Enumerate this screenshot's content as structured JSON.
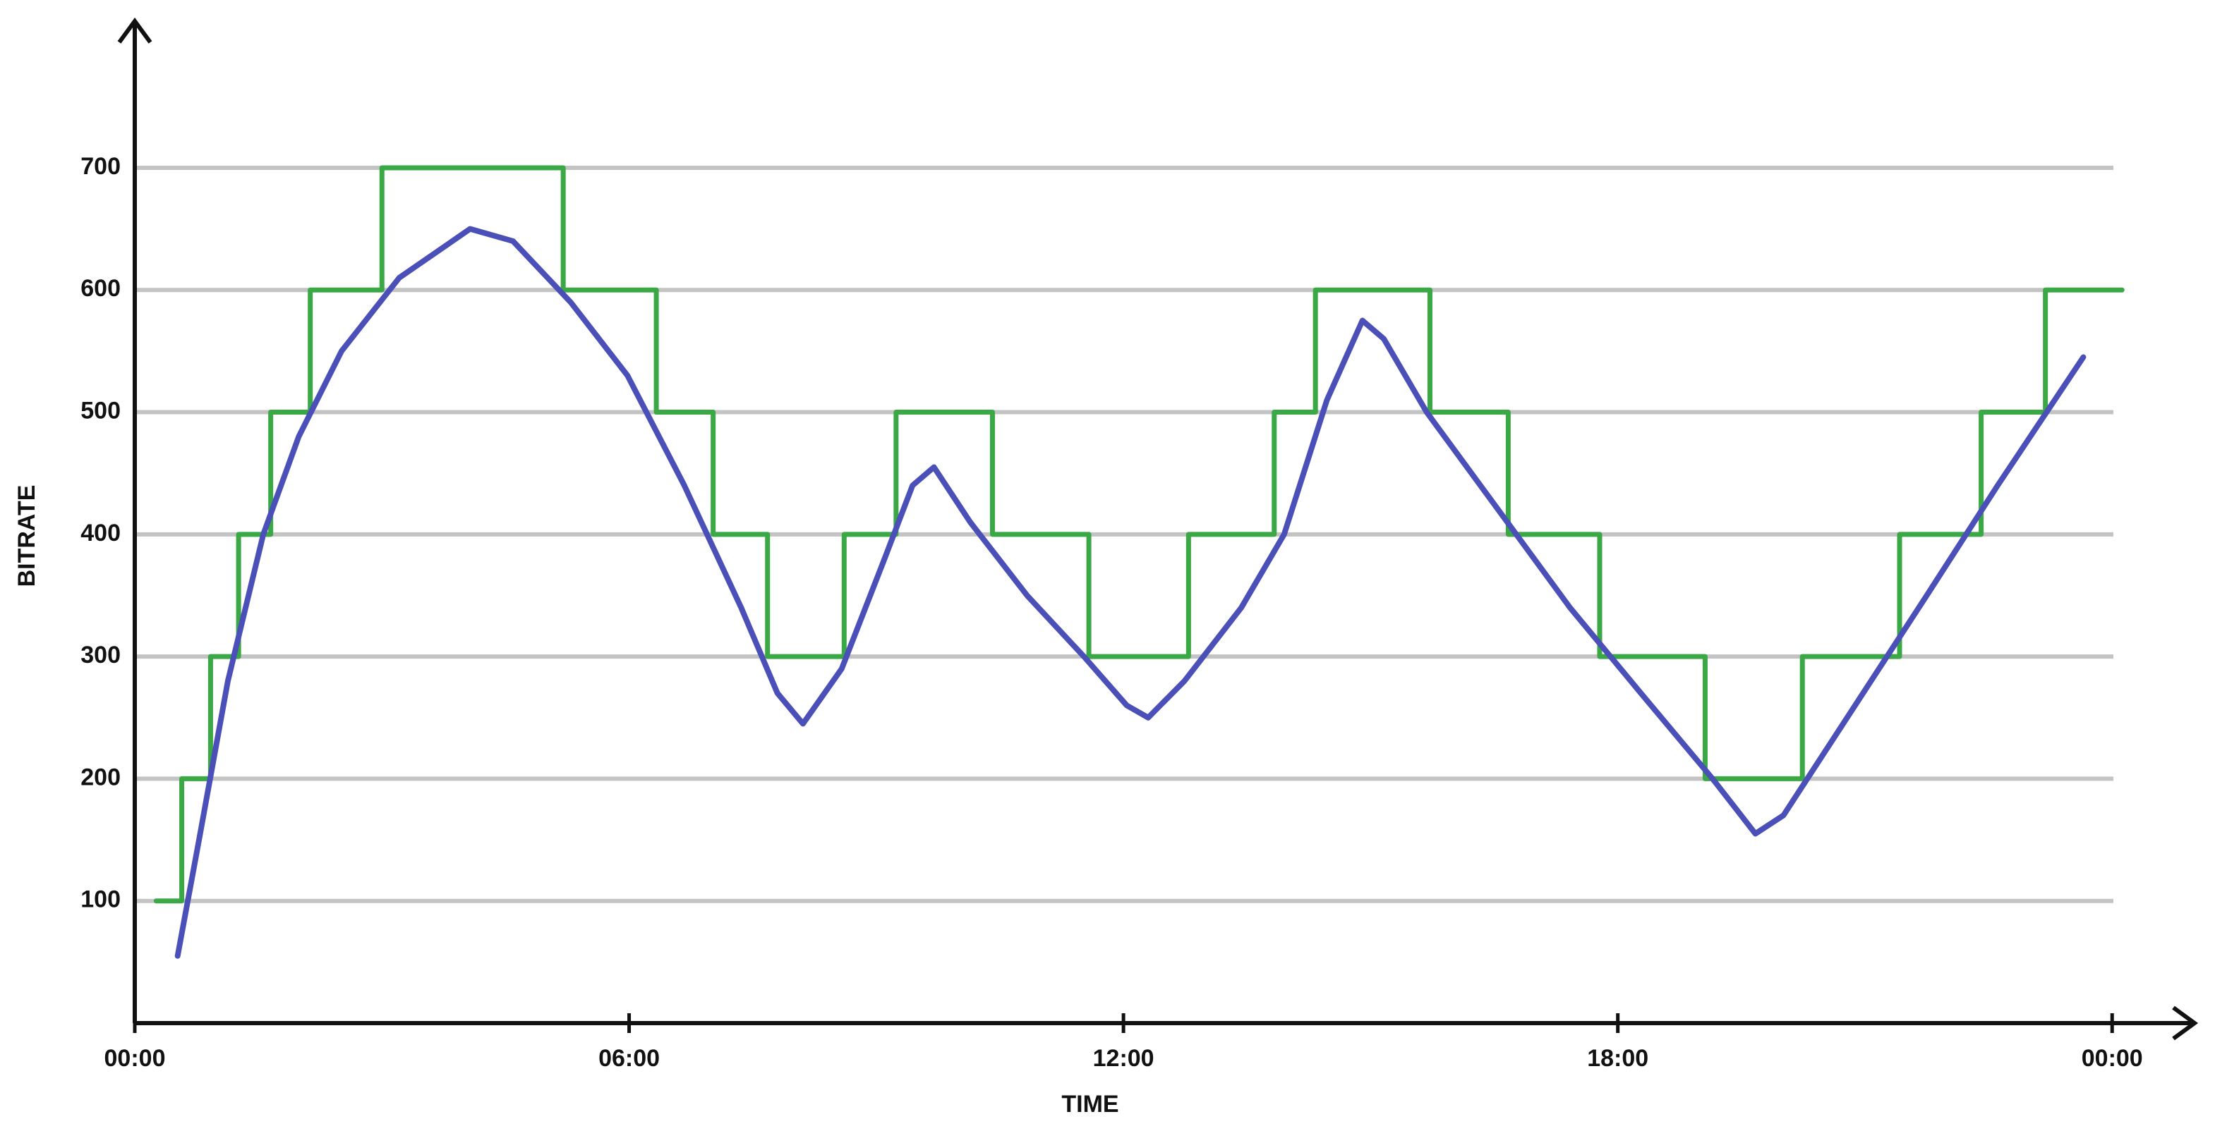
{
  "chart_data": {
    "type": "line",
    "x_label": "TIME",
    "y_label": "BITRATE",
    "xlim": [
      0,
      25
    ],
    "ylim": [
      0,
      820
    ],
    "xticks": [
      {
        "value": 0,
        "label": "00:00"
      },
      {
        "value": 6,
        "label": "06:00"
      },
      {
        "value": 12,
        "label": "12:00"
      },
      {
        "value": 18,
        "label": "18:00"
      },
      {
        "value": 24,
        "label": "00:00"
      }
    ],
    "yticks": [
      100,
      200,
      300,
      400,
      500,
      600,
      700
    ],
    "grid": true,
    "series": [
      {
        "step": true,
        "color": "#3aa845",
        "x": [
          0.26,
          0.57,
          0.92,
          1.26,
          1.65,
          2.13,
          3.0,
          5.2,
          6.33,
          7.02,
          7.68,
          8.61,
          9.24,
          10.41,
          11.58,
          12.79,
          13.83,
          14.33,
          15.72,
          16.67,
          17.78,
          19.06,
          20.24,
          21.42,
          22.41,
          23.19,
          24.12
        ],
        "values": [
          100,
          200,
          300,
          400,
          500,
          600,
          700,
          600,
          500,
          400,
          300,
          400,
          500,
          400,
          300,
          400,
          500,
          600,
          500,
          400,
          300,
          200,
          300,
          400,
          500,
          600,
          600
        ]
      },
      {
        "step": false,
        "color": "#4b4fb8",
        "x": [
          0.52,
          0.78,
          1.13,
          1.56,
          1.99,
          2.51,
          3.21,
          4.07,
          4.59,
          5.29,
          5.98,
          6.67,
          7.36,
          7.8,
          8.11,
          8.58,
          9.1,
          9.44,
          9.7,
          10.14,
          10.83,
          11.52,
          12.04,
          12.3,
          12.74,
          13.43,
          13.95,
          14.47,
          14.9,
          15.16,
          15.68,
          16.55,
          17.42,
          18.28,
          19.15,
          19.67,
          20.01,
          20.88,
          21.75,
          22.61,
          23.65
        ],
        "values": [
          55,
          150,
          280,
          400,
          480,
          550,
          610,
          650,
          640,
          590,
          530,
          440,
          340,
          270,
          245,
          290,
          380,
          440,
          455,
          410,
          350,
          300,
          260,
          250,
          280,
          340,
          400,
          510,
          575,
          560,
          500,
          420,
          340,
          270,
          200,
          155,
          170,
          260,
          350,
          440,
          545
        ]
      }
    ]
  }
}
